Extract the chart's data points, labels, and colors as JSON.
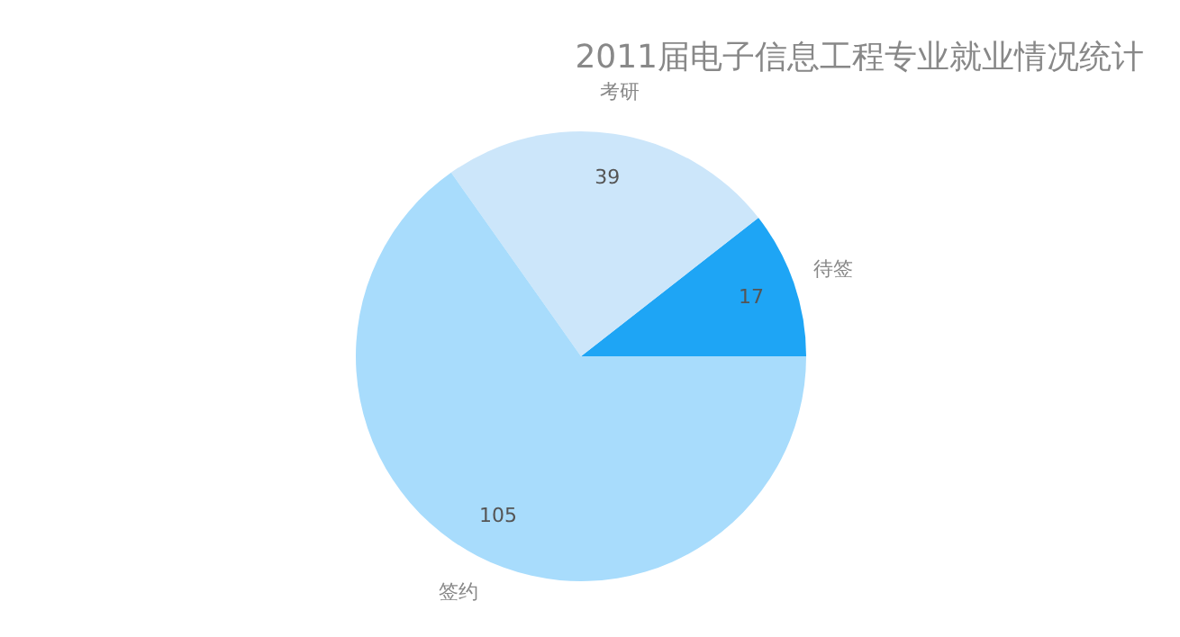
{
  "chart_data": {
    "type": "pie",
    "title": "2011届电子信息工程专业就业情况统计",
    "categories": [
      "待签",
      "考研",
      "签约"
    ],
    "values": [
      17,
      39,
      105
    ],
    "colors": [
      "#1ea5f5",
      "#cce6fa",
      "#a8dcfc"
    ],
    "data_labels": true,
    "legend": false
  }
}
